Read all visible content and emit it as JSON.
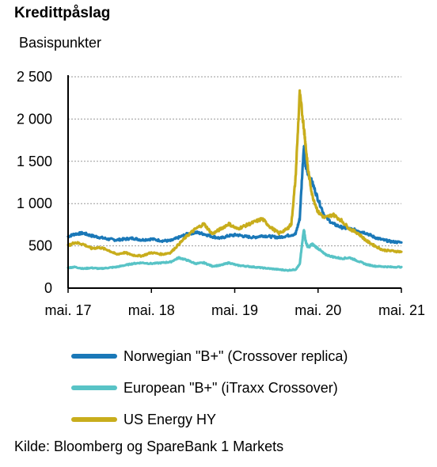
{
  "header": {
    "title": "Kredittpåslag",
    "unit_label": "Basispunkter"
  },
  "legend": [
    {
      "label": "Norwegian \"B+\" (Crossover replica)",
      "color": "#1a78b8"
    },
    {
      "label": "European \"B+\" (iTraxx Crossover)",
      "color": "#58c3c6"
    },
    {
      "label": "US Energy HY",
      "color": "#c8ad1c"
    }
  ],
  "source": "Kilde: Bloomberg og SpareBank 1 Markets",
  "chart_data": {
    "type": "line",
    "title": "Kredittpåslag",
    "ylabel": "Basispunkter",
    "xlabel": "",
    "ylim": [
      0,
      2500
    ],
    "xlim": [
      2017.37,
      2021.37
    ],
    "yticks": [
      0,
      500,
      1000,
      1500,
      2000,
      2500
    ],
    "ytick_labels": [
      "0",
      "500",
      "1 000",
      "1 500",
      "2 000",
      "2 500"
    ],
    "xticks": [
      2017.37,
      2018.37,
      2019.37,
      2020.37,
      2021.37
    ],
    "xtick_labels": [
      "mai. 17",
      "mai. 18",
      "mai. 19",
      "mai. 20",
      "mai. 21"
    ],
    "grid": "horizontal-dashed",
    "series": [
      {
        "name": "Norwegian \"B+\" (Crossover replica)",
        "color": "#1a78b8",
        "x": [
          2017.37,
          2017.45,
          2017.55,
          2017.65,
          2017.75,
          2017.85,
          2017.95,
          2018.05,
          2018.15,
          2018.25,
          2018.37,
          2018.5,
          2018.6,
          2018.7,
          2018.8,
          2018.9,
          2019.0,
          2019.1,
          2019.2,
          2019.3,
          2019.4,
          2019.5,
          2019.6,
          2019.7,
          2019.8,
          2019.9,
          2020.0,
          2020.1,
          2020.15,
          2020.2,
          2020.22,
          2020.25,
          2020.3,
          2020.37,
          2020.45,
          2020.55,
          2020.65,
          2020.75,
          2020.85,
          2020.95,
          2021.05,
          2021.15,
          2021.25,
          2021.37
        ],
        "y": [
          610,
          640,
          650,
          620,
          600,
          580,
          570,
          580,
          590,
          570,
          580,
          560,
          560,
          600,
          640,
          660,
          640,
          610,
          590,
          620,
          630,
          610,
          600,
          620,
          610,
          600,
          620,
          640,
          820,
          1700,
          1450,
          1350,
          1250,
          1050,
          850,
          760,
          720,
          700,
          680,
          650,
          600,
          570,
          550,
          540
        ]
      },
      {
        "name": "European \"B+\" (iTraxx Crossover)",
        "color": "#58c3c6",
        "x": [
          2017.37,
          2017.45,
          2017.55,
          2017.65,
          2017.75,
          2017.85,
          2017.95,
          2018.05,
          2018.15,
          2018.25,
          2018.37,
          2018.5,
          2018.6,
          2018.7,
          2018.8,
          2018.9,
          2019.0,
          2019.1,
          2019.2,
          2019.3,
          2019.4,
          2019.5,
          2019.6,
          2019.7,
          2019.8,
          2019.9,
          2020.0,
          2020.1,
          2020.15,
          2020.2,
          2020.22,
          2020.25,
          2020.3,
          2020.37,
          2020.45,
          2020.55,
          2020.65,
          2020.75,
          2020.85,
          2020.95,
          2021.05,
          2021.15,
          2021.25,
          2021.37
        ],
        "y": [
          240,
          250,
          230,
          240,
          230,
          240,
          250,
          270,
          290,
          300,
          290,
          300,
          310,
          360,
          330,
          290,
          300,
          260,
          270,
          300,
          270,
          260,
          250,
          240,
          230,
          220,
          210,
          220,
          280,
          700,
          560,
          480,
          520,
          470,
          400,
          370,
          350,
          360,
          320,
          280,
          260,
          255,
          250,
          250
        ]
      },
      {
        "name": "US Energy HY",
        "color": "#c8ad1c",
        "x": [
          2017.37,
          2017.45,
          2017.55,
          2017.65,
          2017.75,
          2017.85,
          2017.95,
          2018.05,
          2018.15,
          2018.25,
          2018.37,
          2018.5,
          2018.6,
          2018.7,
          2018.8,
          2018.9,
          2019.0,
          2019.1,
          2019.2,
          2019.3,
          2019.4,
          2019.5,
          2019.6,
          2019.7,
          2019.8,
          2019.9,
          2020.0,
          2020.05,
          2020.1,
          2020.15,
          2020.2,
          2020.22,
          2020.25,
          2020.3,
          2020.37,
          2020.45,
          2020.55,
          2020.65,
          2020.75,
          2020.85,
          2020.95,
          2021.05,
          2021.15,
          2021.25,
          2021.37
        ],
        "y": [
          500,
          540,
          520,
          470,
          480,
          450,
          400,
          420,
          390,
          380,
          420,
          400,
          420,
          520,
          620,
          700,
          760,
          640,
          700,
          760,
          700,
          740,
          780,
          820,
          720,
          650,
          700,
          760,
          1300,
          2300,
          1900,
          1700,
          1400,
          1100,
          900,
          830,
          870,
          800,
          700,
          650,
          560,
          500,
          450,
          440,
          430
        ]
      }
    ]
  }
}
